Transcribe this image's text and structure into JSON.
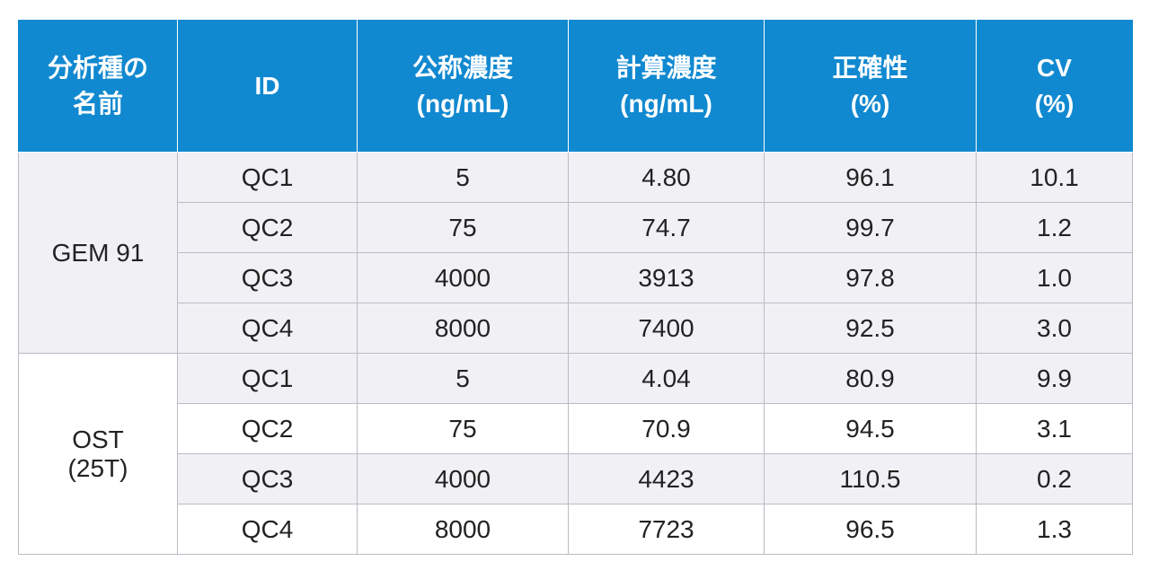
{
  "table": {
    "header": [
      [
        "分析種の",
        "名前"
      ],
      [
        "ID"
      ],
      [
        "公称濃度",
        "(ng/mL)"
      ],
      [
        "計算濃度",
        "(ng/mL)"
      ],
      [
        "正確性",
        "(%)"
      ],
      [
        "CV",
        "(%)"
      ]
    ],
    "groups": [
      {
        "name": [
          "GEM 91"
        ],
        "rows": [
          [
            "QC1",
            "5",
            "4.80",
            "96.1",
            "10.1"
          ],
          [
            "QC2",
            "75",
            "74.7",
            "99.7",
            "1.2"
          ],
          [
            "QC3",
            "4000",
            "3913",
            "97.8",
            "1.0"
          ],
          [
            "QC4",
            "8000",
            "7400",
            "92.5",
            "3.0"
          ]
        ]
      },
      {
        "name": [
          "OST",
          "(25T)"
        ],
        "rows": [
          [
            "QC1",
            "5",
            "4.04",
            "80.9",
            "9.9"
          ],
          [
            "QC2",
            "75",
            "70.9",
            "94.5",
            "3.1"
          ],
          [
            "QC3",
            "4000",
            "4423",
            "110.5",
            "0.2"
          ],
          [
            "QC4",
            "8000",
            "7723",
            "96.5",
            "1.3"
          ]
        ]
      }
    ]
  }
}
